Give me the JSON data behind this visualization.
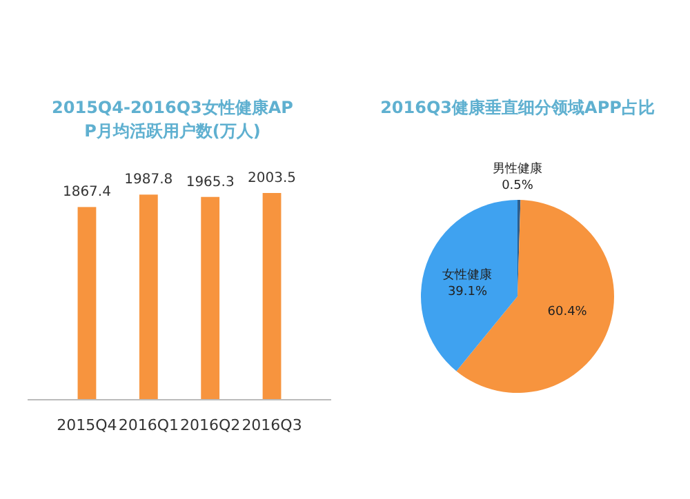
{
  "chart_data": [
    {
      "type": "bar",
      "title": "2015Q4-2016Q3女性健康APP月均活跃用户数(万人)",
      "categories": [
        "2015Q4",
        "2016Q1",
        "2016Q2",
        "2016Q3"
      ],
      "values": [
        1867.4,
        1987.8,
        1965.3,
        2003.5
      ],
      "color": "#f7943e",
      "data_labels": true
    },
    {
      "type": "pie",
      "title": "2016Q3健康垂直细分领域APP占比",
      "categories": [
        "男性健康",
        null,
        "女性健康"
      ],
      "values": [
        0.5,
        60.4,
        39.1
      ],
      "value_labels": [
        "0.5%",
        "60.4%",
        "39.1%"
      ],
      "colors": [
        "#2e5e8c",
        "#f7943e",
        "#3fa2f0"
      ]
    }
  ]
}
